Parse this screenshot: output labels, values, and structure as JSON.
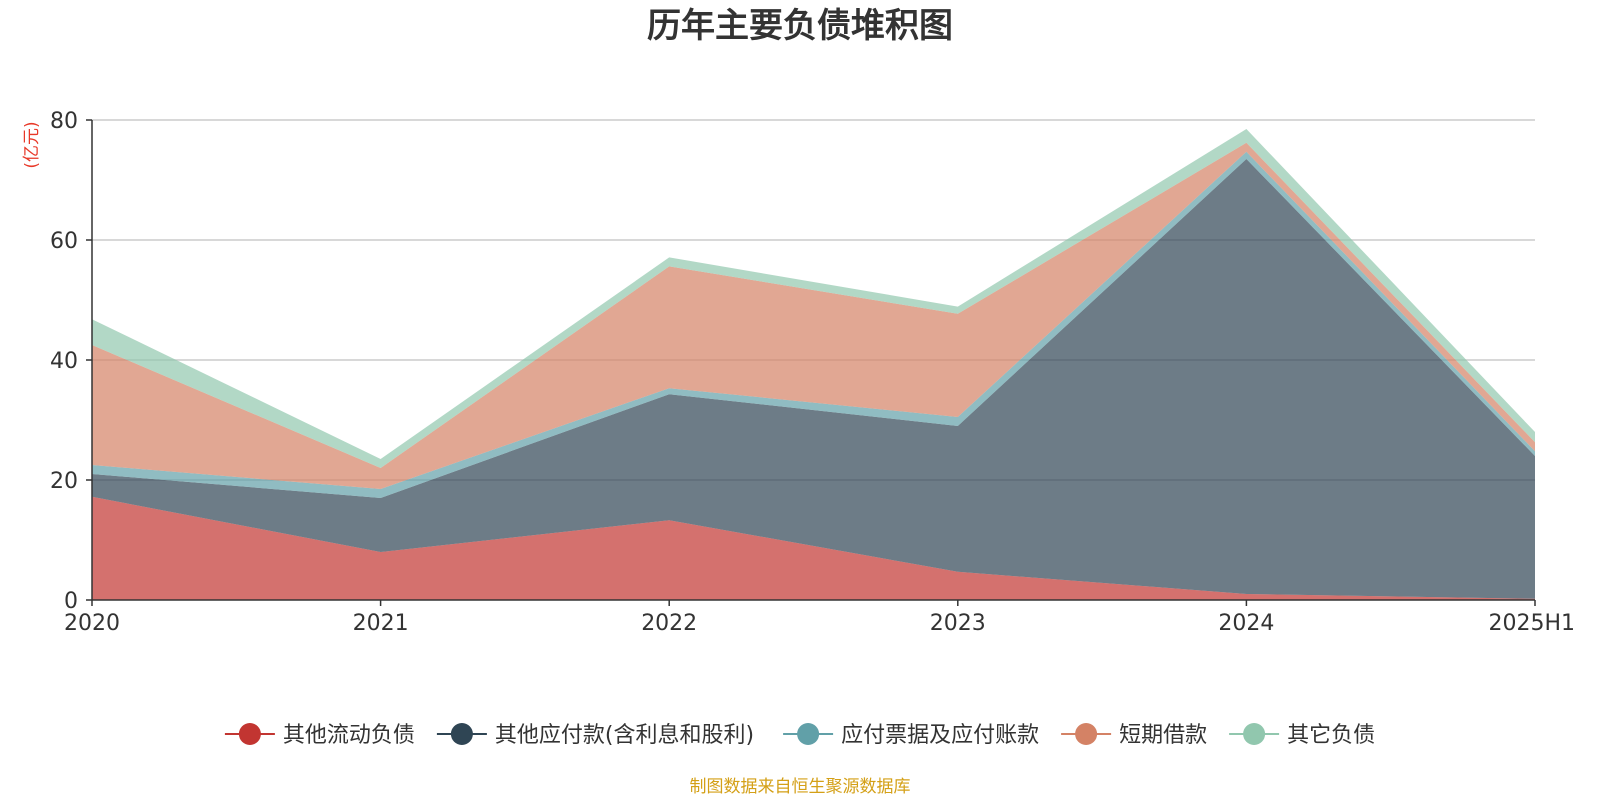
{
  "chart_data": {
    "type": "area",
    "stacked": true,
    "title": "历年主要负债堆积图",
    "ylabel": "(亿元)",
    "categories": [
      "2020",
      "2021",
      "2022",
      "2023",
      "2024",
      "2025H1"
    ],
    "ylim": [
      0,
      80
    ],
    "yticks": [
      0,
      20,
      40,
      60,
      80
    ],
    "grid": true,
    "legend_position": "bottom",
    "series": [
      {
        "name": "其他流动负债",
        "color": "#c23531",
        "values": [
          17.2,
          8.0,
          13.3,
          4.7,
          1.0,
          0.2
        ]
      },
      {
        "name": "其他应付款(含利息和股利)",
        "color": "#2f4554",
        "values": [
          3.8,
          9.0,
          21.0,
          24.3,
          72.5,
          23.8
        ]
      },
      {
        "name": "应付票据及应付账款",
        "color": "#61a0a8",
        "values": [
          1.5,
          1.5,
          1.0,
          1.5,
          1.2,
          0.8
        ]
      },
      {
        "name": "短期借款",
        "color": "#d48265",
        "values": [
          20.0,
          3.5,
          20.3,
          17.2,
          1.5,
          1.5
        ]
      },
      {
        "name": "其它负债",
        "color": "#91c7ae",
        "values": [
          4.3,
          1.5,
          1.5,
          1.2,
          2.3,
          1.7
        ]
      }
    ]
  },
  "colors": {
    "ylabel": "#e83828",
    "source": "#d4a017"
  },
  "footer": {
    "source": "制图数据来自恒生聚源数据库"
  }
}
